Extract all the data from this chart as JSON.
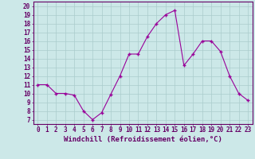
{
  "x": [
    0,
    1,
    2,
    3,
    4,
    5,
    6,
    7,
    8,
    9,
    10,
    11,
    12,
    13,
    14,
    15,
    16,
    17,
    18,
    19,
    20,
    21,
    22,
    23
  ],
  "y": [
    11,
    11,
    10,
    10,
    9.8,
    8,
    7,
    7.8,
    9.9,
    12,
    14.5,
    14.5,
    16.5,
    18,
    19,
    19.5,
    13.2,
    14.5,
    16,
    16,
    14.8,
    12,
    10,
    9.2
  ],
  "line_color": "#990099",
  "marker": "+",
  "bg_color": "#cce8e8",
  "grid_color": "#aacccc",
  "xlabel": "Windchill (Refroidissement éolien,°C)",
  "ylabel_ticks": [
    7,
    8,
    9,
    10,
    11,
    12,
    13,
    14,
    15,
    16,
    17,
    18,
    19,
    20
  ],
  "ylim": [
    6.5,
    20.5
  ],
  "xlim": [
    -0.5,
    23.5
  ],
  "label_color": "#660066",
  "tick_fontsize": 5.5,
  "xlabel_fontsize": 6.5
}
